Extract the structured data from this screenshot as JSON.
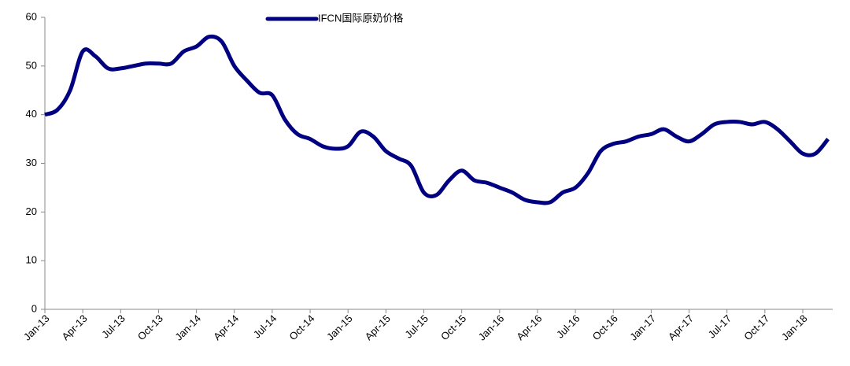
{
  "chart_data": {
    "type": "line",
    "categories": [
      "Jan-13",
      null,
      null,
      "Apr-13",
      null,
      null,
      "Jul-13",
      null,
      null,
      "Oct-13",
      null,
      null,
      "Jan-14",
      null,
      null,
      "Apr-14",
      null,
      null,
      "Jul-14",
      null,
      null,
      "Oct-14",
      null,
      null,
      "Jan-15",
      null,
      null,
      "Apr-15",
      null,
      null,
      "Jul-15",
      null,
      null,
      "Oct-15",
      null,
      null,
      "Jan-16",
      null,
      null,
      "Apr-16",
      null,
      null,
      "Jul-16",
      null,
      null,
      "Oct-16",
      null,
      null,
      "Jan-17",
      null,
      null,
      "Apr-17",
      null,
      null,
      "Jul-17",
      null,
      null,
      "Oct-17",
      null,
      null,
      "Jan-18",
      null,
      null
    ],
    "series": [
      {
        "name": "IFCN国际原奶价格",
        "color": "#000080",
        "values": [
          40,
          41,
          45,
          53,
          52,
          49.5,
          49.5,
          50,
          50.5,
          50.5,
          50.5,
          53,
          54,
          56,
          55,
          50,
          47,
          44.5,
          44,
          39,
          36,
          35,
          33.5,
          33,
          33.5,
          36.5,
          35.5,
          32.5,
          31,
          29.5,
          24,
          23.5,
          26.5,
          28.5,
          26.5,
          26,
          25,
          24,
          22.5,
          22,
          22,
          24,
          25,
          28,
          32.5,
          34,
          34.5,
          35.5,
          36,
          37,
          35.5,
          34.5,
          36,
          38,
          38.5,
          38.5,
          38,
          38.5,
          37,
          34.5,
          32,
          32,
          35
        ]
      }
    ],
    "ylim": [
      0,
      60
    ],
    "yticks": [
      0,
      10,
      20,
      30,
      40,
      50,
      60
    ],
    "grid": false,
    "legend": "top"
  }
}
